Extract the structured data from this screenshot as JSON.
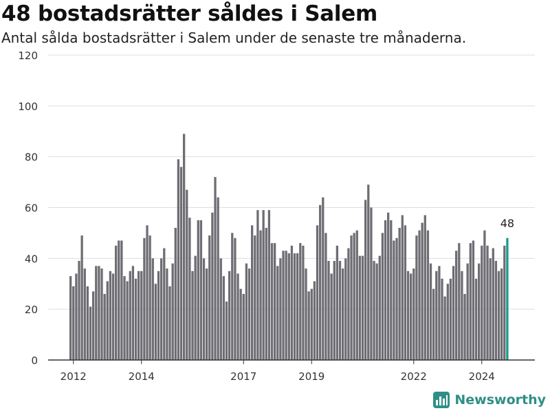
{
  "title": "48 bostadsrätter såldes i Salem",
  "subtitle": "Antal sålda bostadsrätter i Salem under de senaste tre månaderna.",
  "brand": "Newsworthy",
  "colors": {
    "bar": "#6e6d73",
    "highlight": "#1a9c8c",
    "grid": "#dedede",
    "axis": "#333333"
  },
  "chart_data": {
    "type": "bar",
    "ylim": [
      0,
      120
    ],
    "yticks": [
      0,
      20,
      40,
      60,
      80,
      100,
      120
    ],
    "xticks": [
      "2012",
      "2014",
      "2017",
      "2019",
      "2022",
      "2024"
    ],
    "xtick_positions": [
      1,
      25,
      61,
      85,
      121,
      145
    ],
    "values": [
      33,
      29,
      34,
      39,
      49,
      36,
      29,
      21,
      27,
      37,
      37,
      36,
      26,
      31,
      35,
      34,
      45,
      47,
      47,
      33,
      31,
      35,
      37,
      32,
      35,
      35,
      48,
      53,
      49,
      40,
      30,
      35,
      40,
      44,
      36,
      29,
      38,
      52,
      79,
      76,
      89,
      67,
      56,
      35,
      41,
      55,
      55,
      40,
      36,
      49,
      58,
      72,
      64,
      40,
      33,
      23,
      35,
      50,
      48,
      34,
      28,
      26,
      38,
      36,
      53,
      49,
      59,
      51,
      59,
      52,
      59,
      46,
      46,
      37,
      40,
      43,
      43,
      42,
      45,
      42,
      42,
      46,
      45,
      36,
      27,
      28,
      31,
      53,
      61,
      64,
      50,
      39,
      34,
      39,
      45,
      39,
      36,
      40,
      44,
      49,
      50,
      51,
      41,
      41,
      63,
      69,
      60,
      39,
      38,
      41,
      50,
      55,
      58,
      55,
      47,
      48,
      52,
      57,
      53,
      35,
      34,
      36,
      49,
      51,
      54,
      57,
      51,
      38,
      28,
      35,
      37,
      32,
      25,
      30,
      32,
      37,
      43,
      46,
      35,
      26,
      38,
      46,
      47,
      32,
      38,
      45,
      51,
      45,
      40,
      44,
      39,
      35,
      36,
      45,
      48
    ],
    "highlight_label": "48"
  }
}
